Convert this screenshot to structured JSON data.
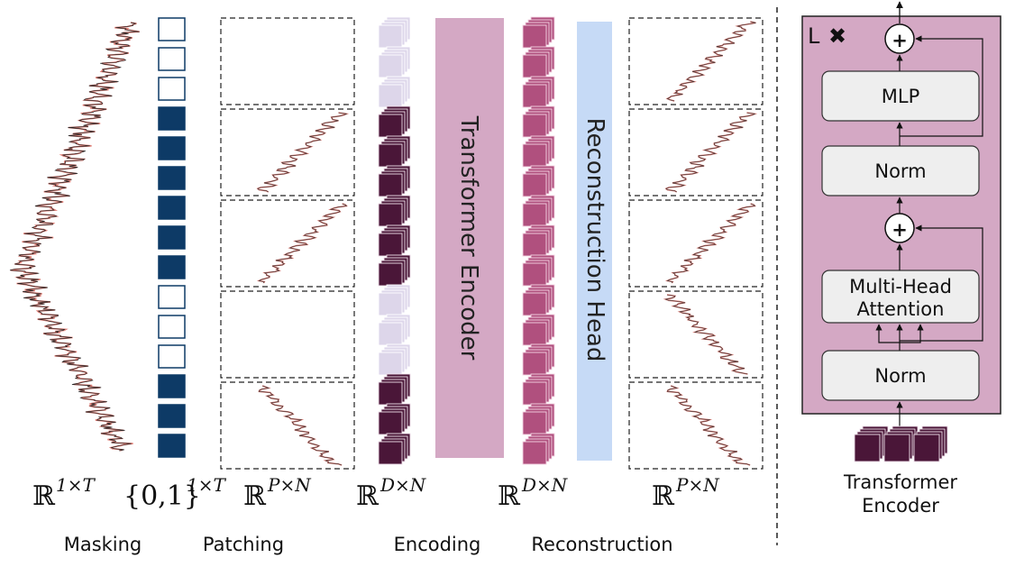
{
  "stages": {
    "masking": "Masking",
    "patching": "Patching",
    "encoding": "Encoding",
    "reconstruction": "Reconstruction"
  },
  "math": {
    "series_space": "ℝ",
    "series_sup": "1×T",
    "mask_space": "{0,1}",
    "mask_sup": "1×T",
    "patch_space": "ℝ",
    "patch_sup": "P×N",
    "encoding_space": "ℝ",
    "encoding_sup": "D×N",
    "recon_embed_space": "ℝ",
    "recon_embed_sup": "D×N",
    "recon_patch_space": "ℝ",
    "recon_patch_sup": "P×N"
  },
  "blocks": {
    "transformer_encoder": "Transformer Encoder",
    "reconstruction_head": "Reconstruction Head"
  },
  "mask_pattern": [
    0,
    0,
    0,
    1,
    1,
    1,
    1,
    1,
    1,
    0,
    0,
    0,
    1,
    1,
    1
  ],
  "patch_visible": [
    false,
    true,
    true,
    false,
    true
  ],
  "encoder_detail": {
    "repeat_label": "L",
    "repeat_symbol": "✖",
    "mlp": "MLP",
    "norm_top": "Norm",
    "add_symbol": "+",
    "attention_line1": "Multi-Head",
    "attention_line2": "Attention",
    "norm_bottom": "Norm",
    "caption_line1": "Transformer",
    "caption_line2": "Encoder"
  },
  "colors": {
    "mask_filled": "#0d3a66",
    "mask_empty_border": "#0d3a66",
    "encoding_dark": "#4a1638",
    "encoding_light": "#ddd6ea",
    "recon_pink": "#b0507e",
    "encoder_block": "#d4a8c4",
    "recon_head_block": "#c6daf6",
    "detail_bg": "#d4a8c4",
    "signal_line": "#d9766f"
  }
}
